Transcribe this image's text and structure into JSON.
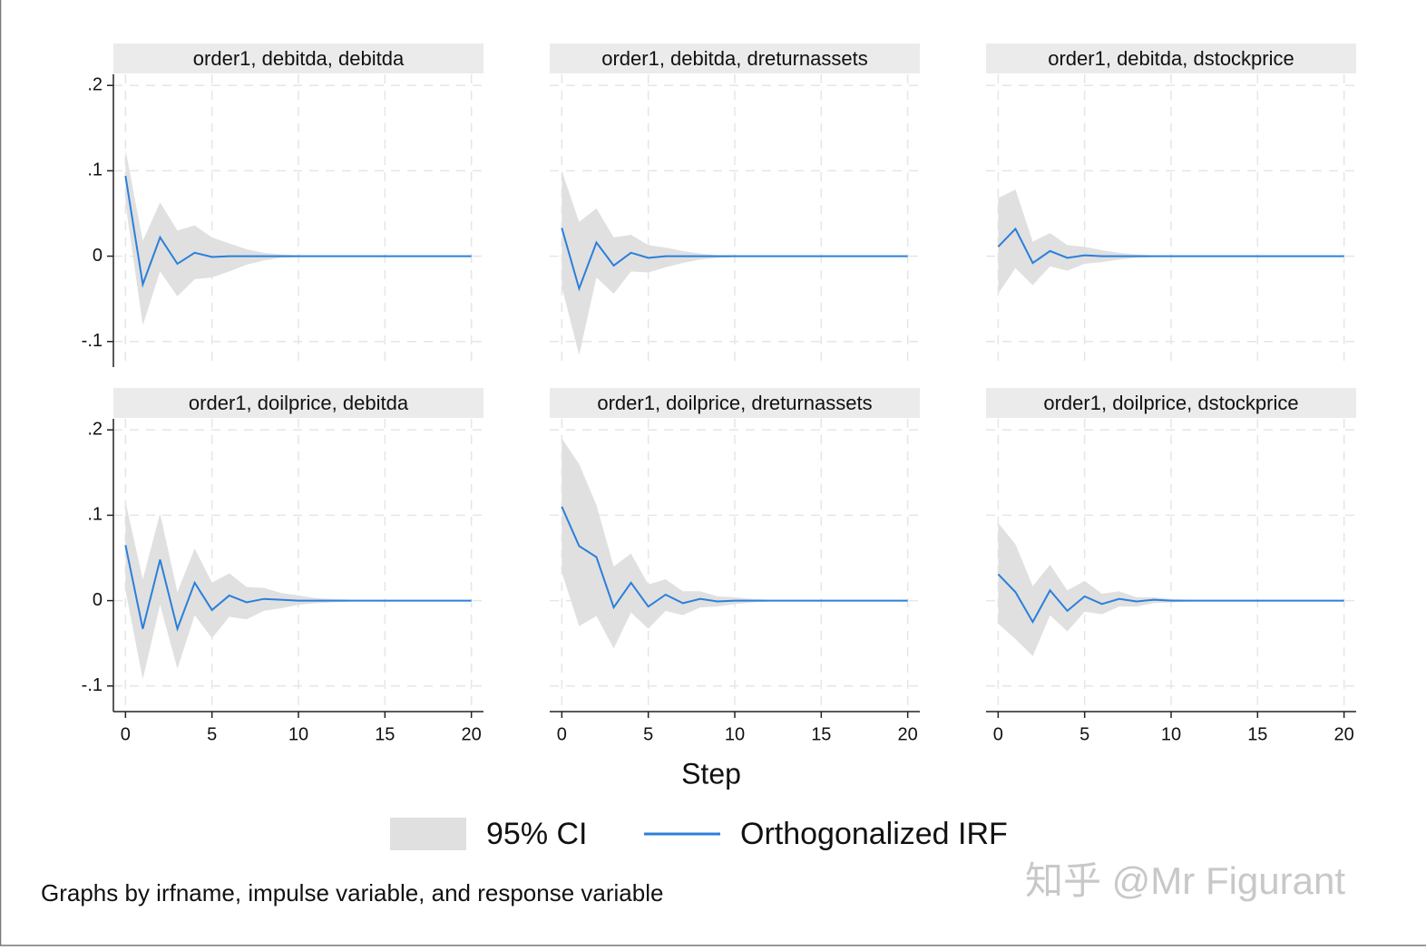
{
  "chart_data": [
    {
      "type": "line",
      "title": "order1, debitda, debitda",
      "x": [
        0,
        1,
        2,
        3,
        4,
        5,
        6,
        7,
        8,
        9,
        10,
        11,
        12,
        13,
        14,
        15,
        16,
        17,
        18,
        19,
        20
      ],
      "irf": [
        0.094,
        -0.033,
        0.022,
        -0.009,
        0.004,
        -0.001,
        0,
        0,
        0,
        0,
        0,
        0,
        0,
        0,
        0,
        0,
        0,
        0,
        0,
        0,
        0
      ],
      "ci_lower": [
        0.062,
        -0.081,
        -0.018,
        -0.047,
        -0.027,
        -0.025,
        -0.018,
        -0.01,
        -0.005,
        -0.002,
        -0.001,
        0,
        0,
        0,
        0,
        0,
        0,
        0,
        0,
        0,
        0
      ],
      "ci_upper": [
        0.125,
        0.018,
        0.063,
        0.03,
        0.036,
        0.022,
        0.015,
        0.008,
        0.004,
        0.002,
        0.001,
        0,
        0,
        0,
        0,
        0,
        0,
        0,
        0,
        0,
        0
      ]
    },
    {
      "type": "line",
      "title": "order1, debitda, dreturnassets",
      "x": [
        0,
        1,
        2,
        3,
        4,
        5,
        6,
        7,
        8,
        9,
        10,
        11,
        12,
        13,
        14,
        15,
        16,
        17,
        18,
        19,
        20
      ],
      "irf": [
        0.033,
        -0.038,
        0.016,
        -0.011,
        0.004,
        -0.002,
        0,
        0,
        0,
        0,
        0,
        0,
        0,
        0,
        0,
        0,
        0,
        0,
        0,
        0,
        0
      ],
      "ci_lower": [
        -0.036,
        -0.116,
        -0.025,
        -0.044,
        -0.018,
        -0.019,
        -0.013,
        -0.008,
        -0.004,
        -0.002,
        -0.001,
        0,
        0,
        0,
        0,
        0,
        0,
        0,
        0,
        0,
        0
      ],
      "ci_upper": [
        0.1,
        0.04,
        0.056,
        0.022,
        0.025,
        0.013,
        0.01,
        0.006,
        0.003,
        0.001,
        0.001,
        0,
        0,
        0,
        0,
        0,
        0,
        0,
        0,
        0,
        0
      ]
    },
    {
      "type": "line",
      "title": "order1, debitda, dstockprice",
      "x": [
        0,
        1,
        2,
        3,
        4,
        5,
        6,
        7,
        8,
        9,
        10,
        11,
        12,
        13,
        14,
        15,
        16,
        17,
        18,
        19,
        20
      ],
      "irf": [
        0.011,
        0.032,
        -0.008,
        0.006,
        -0.002,
        0.001,
        0,
        0,
        0,
        0,
        0,
        0,
        0,
        0,
        0,
        0,
        0,
        0,
        0,
        0,
        0
      ],
      "ci_lower": [
        -0.044,
        -0.014,
        -0.034,
        -0.012,
        -0.017,
        -0.009,
        -0.007,
        -0.004,
        -0.002,
        -0.001,
        0,
        0,
        0,
        0,
        0,
        0,
        0,
        0,
        0,
        0,
        0
      ],
      "ci_upper": [
        0.068,
        0.078,
        0.017,
        0.027,
        0.013,
        0.011,
        0.007,
        0.004,
        0.002,
        0.001,
        0,
        0,
        0,
        0,
        0,
        0,
        0,
        0,
        0,
        0,
        0
      ]
    },
    {
      "type": "line",
      "title": "order1, doilprice, debitda",
      "x": [
        0,
        1,
        2,
        3,
        4,
        5,
        6,
        7,
        8,
        9,
        10,
        11,
        12,
        13,
        14,
        15,
        16,
        17,
        18,
        19,
        20
      ],
      "irf": [
        0.065,
        -0.033,
        0.048,
        -0.033,
        0.021,
        -0.011,
        0.006,
        -0.002,
        0.002,
        0.001,
        0,
        0,
        0,
        0,
        0,
        0,
        0,
        0,
        0,
        0,
        0
      ],
      "ci_lower": [
        0.012,
        -0.092,
        -0.005,
        -0.08,
        -0.017,
        -0.044,
        -0.019,
        -0.022,
        -0.012,
        -0.009,
        -0.005,
        -0.003,
        -0.002,
        -0.001,
        0,
        0,
        0,
        0,
        0,
        0,
        0
      ],
      "ci_upper": [
        0.116,
        0.025,
        0.102,
        0.01,
        0.061,
        0.021,
        0.032,
        0.016,
        0.015,
        0.009,
        0.006,
        0.003,
        0.002,
        0.001,
        0,
        0,
        0,
        0,
        0,
        0,
        0
      ]
    },
    {
      "type": "line",
      "title": "order1, doilprice, dreturnassets",
      "x": [
        0,
        1,
        2,
        3,
        4,
        5,
        6,
        7,
        8,
        9,
        10,
        11,
        12,
        13,
        14,
        15,
        16,
        17,
        18,
        19,
        20
      ],
      "irf": [
        0.11,
        0.064,
        0.051,
        -0.008,
        0.021,
        -0.007,
        0.007,
        -0.003,
        0.002,
        -0.001,
        0,
        0,
        0,
        0,
        0,
        0,
        0,
        0,
        0,
        0,
        0
      ],
      "ci_lower": [
        0.033,
        -0.03,
        -0.018,
        -0.056,
        -0.014,
        -0.033,
        -0.012,
        -0.017,
        -0.008,
        -0.007,
        -0.004,
        -0.002,
        -0.001,
        0,
        0,
        0,
        0,
        0,
        0,
        0,
        0
      ],
      "ci_upper": [
        0.19,
        0.16,
        0.112,
        0.04,
        0.055,
        0.019,
        0.025,
        0.011,
        0.011,
        0.005,
        0.004,
        0.002,
        0.001,
        0,
        0,
        0,
        0,
        0,
        0,
        0,
        0
      ]
    },
    {
      "type": "line",
      "title": "order1, doilprice, dstockprice",
      "x": [
        0,
        1,
        2,
        3,
        4,
        5,
        6,
        7,
        8,
        9,
        10,
        11,
        12,
        13,
        14,
        15,
        16,
        17,
        18,
        19,
        20
      ],
      "irf": [
        0.031,
        0.01,
        -0.025,
        0.012,
        -0.012,
        0.005,
        -0.004,
        0.002,
        -0.001,
        0.001,
        0,
        0,
        0,
        0,
        0,
        0,
        0,
        0,
        0,
        0,
        0
      ],
      "ci_lower": [
        -0.027,
        -0.045,
        -0.065,
        -0.017,
        -0.036,
        -0.013,
        -0.016,
        -0.007,
        -0.007,
        -0.003,
        -0.002,
        -0.001,
        0,
        0,
        0,
        0,
        0,
        0,
        0,
        0,
        0
      ],
      "ci_upper": [
        0.091,
        0.066,
        0.017,
        0.042,
        0.012,
        0.023,
        0.008,
        0.011,
        0.004,
        0.004,
        0.002,
        0.001,
        0,
        0,
        0,
        0,
        0,
        0,
        0,
        0,
        0
      ]
    }
  ],
  "axes": {
    "xlabel": "Step",
    "xlim": [
      -0.7,
      20.7
    ],
    "xticks": [
      0,
      5,
      10,
      15,
      20
    ],
    "ylim": [
      -0.13,
      0.213
    ],
    "yticks": [
      {
        "value": 0.2,
        "label": ".2"
      },
      {
        "value": 0.1,
        "label": ".1"
      },
      0,
      {
        "value": -0.1,
        "label": "-.1"
      }
    ],
    "grid": true
  },
  "legend": [
    {
      "name": "95% CI",
      "color": "#e0e0e0"
    },
    {
      "name": "Orthogonalized IRF",
      "color": "#2a7fdb"
    }
  ],
  "note": "Graphs by irfname, impulse variable, and response variable",
  "watermark": "知乎 @Mr Figurant"
}
